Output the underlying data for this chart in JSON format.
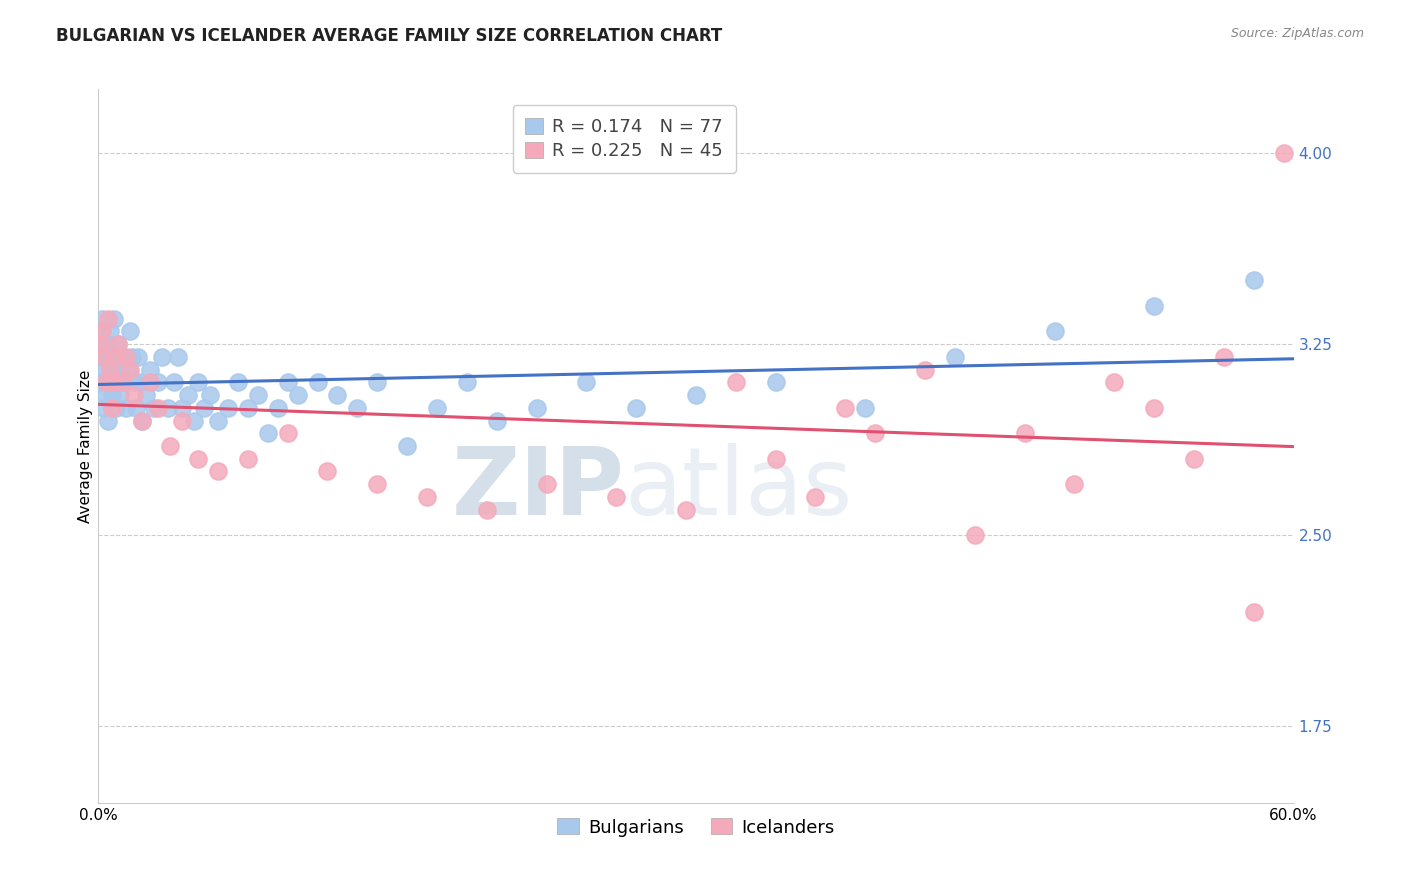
{
  "title": "BULGARIAN VS ICELANDER AVERAGE FAMILY SIZE CORRELATION CHART",
  "source": "Source: ZipAtlas.com",
  "ylabel": "Average Family Size",
  "xlim": [
    0.0,
    0.6
  ],
  "ylim": [
    1.45,
    4.25
  ],
  "yticks": [
    1.75,
    2.5,
    3.25,
    4.0
  ],
  "xticks": [
    0.0,
    0.1,
    0.2,
    0.3,
    0.4,
    0.5,
    0.6
  ],
  "xtick_labels": [
    "0.0%",
    "",
    "",
    "",
    "",
    "",
    "60.0%"
  ],
  "bulgarian_color": "#A8C8EC",
  "icelander_color": "#F4AABB",
  "trend_blue": "#4472C4",
  "trend_pink": "#E05070",
  "ytick_color": "#4472C4",
  "R_bulgarian": 0.174,
  "N_bulgarian": 77,
  "R_icelander": 0.225,
  "N_icelander": 45,
  "legend_label_bulgarian": "Bulgarians",
  "legend_label_icelander": "Icelanders",
  "watermark_zip": "ZIP",
  "watermark_atlas": "atlas",
  "watermark_color": "#C8D8EA",
  "bulgarian_x": [
    0.001,
    0.001,
    0.002,
    0.002,
    0.003,
    0.003,
    0.003,
    0.004,
    0.004,
    0.004,
    0.005,
    0.005,
    0.005,
    0.006,
    0.006,
    0.007,
    0.007,
    0.008,
    0.008,
    0.009,
    0.009,
    0.01,
    0.01,
    0.011,
    0.011,
    0.012,
    0.013,
    0.014,
    0.015,
    0.016,
    0.017,
    0.018,
    0.019,
    0.02,
    0.021,
    0.022,
    0.024,
    0.026,
    0.028,
    0.03,
    0.032,
    0.035,
    0.038,
    0.04,
    0.042,
    0.045,
    0.048,
    0.05,
    0.053,
    0.056,
    0.06,
    0.065,
    0.07,
    0.075,
    0.08,
    0.085,
    0.09,
    0.095,
    0.1,
    0.11,
    0.12,
    0.13,
    0.14,
    0.155,
    0.17,
    0.185,
    0.2,
    0.22,
    0.245,
    0.27,
    0.3,
    0.34,
    0.385,
    0.43,
    0.48,
    0.53,
    0.58
  ],
  "bulgarian_y": [
    3.2,
    3.1,
    3.35,
    3.3,
    3.15,
    3.0,
    3.25,
    3.1,
    3.2,
    3.05,
    3.25,
    3.1,
    2.95,
    3.15,
    3.3,
    3.2,
    3.05,
    3.35,
    3.15,
    3.0,
    3.2,
    3.25,
    3.1,
    3.15,
    3.05,
    3.2,
    3.1,
    3.0,
    3.15,
    3.3,
    3.2,
    3.1,
    3.0,
    3.2,
    3.1,
    2.95,
    3.05,
    3.15,
    3.0,
    3.1,
    3.2,
    3.0,
    3.1,
    3.2,
    3.0,
    3.05,
    2.95,
    3.1,
    3.0,
    3.05,
    2.95,
    3.0,
    3.1,
    3.0,
    3.05,
    2.9,
    3.0,
    3.1,
    3.05,
    3.1,
    3.05,
    3.0,
    3.1,
    2.85,
    3.0,
    3.1,
    2.95,
    3.0,
    3.1,
    3.0,
    3.05,
    3.1,
    3.0,
    3.2,
    3.3,
    3.4,
    3.5
  ],
  "icelander_x": [
    0.001,
    0.002,
    0.003,
    0.004,
    0.005,
    0.006,
    0.007,
    0.008,
    0.009,
    0.01,
    0.012,
    0.014,
    0.016,
    0.018,
    0.022,
    0.026,
    0.03,
    0.036,
    0.042,
    0.05,
    0.06,
    0.075,
    0.095,
    0.115,
    0.14,
    0.165,
    0.195,
    0.225,
    0.26,
    0.295,
    0.32,
    0.34,
    0.36,
    0.375,
    0.39,
    0.415,
    0.44,
    0.465,
    0.49,
    0.51,
    0.53,
    0.55,
    0.565,
    0.58,
    0.595
  ],
  "icelander_y": [
    3.25,
    3.3,
    3.2,
    3.1,
    3.35,
    3.15,
    3.0,
    3.1,
    3.2,
    3.25,
    3.1,
    3.2,
    3.15,
    3.05,
    2.95,
    3.1,
    3.0,
    2.85,
    2.95,
    2.8,
    2.75,
    2.8,
    2.9,
    2.75,
    2.7,
    2.65,
    2.6,
    2.7,
    2.65,
    2.6,
    3.1,
    2.8,
    2.65,
    3.0,
    2.9,
    3.15,
    2.5,
    2.9,
    2.7,
    3.1,
    3.0,
    2.8,
    3.2,
    2.2,
    4.0
  ],
  "title_fontsize": 12,
  "axis_label_fontsize": 11,
  "tick_fontsize": 11,
  "legend_fontsize": 13
}
